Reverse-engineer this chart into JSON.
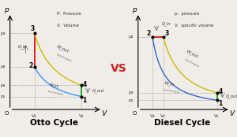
{
  "bg_color": "#f0ede8",
  "otto": {
    "title": "Otto Cycle",
    "xlabel": "V",
    "ylabel": "p",
    "legend_lines": [
      "P:  Pressure",
      "V:  Volume"
    ],
    "points": {
      "1": [
        0.82,
        0.14
      ],
      "2": [
        0.28,
        0.46
      ],
      "3": [
        0.28,
        0.82
      ],
      "4": [
        0.82,
        0.26
      ]
    },
    "colors": {
      "12": "#3399ff",
      "23": "#dd2222",
      "34": "#ccbb00",
      "41": "#22aa22"
    }
  },
  "diesel": {
    "title": "Diesel Cycle",
    "xlabel": "V",
    "ylabel": "p",
    "legend_lines": [
      "p:  pressure",
      "V:  specific volume"
    ],
    "points": {
      "1": [
        0.88,
        0.1
      ],
      "2": [
        0.16,
        0.78
      ],
      "3": [
        0.28,
        0.78
      ],
      "4": [
        0.88,
        0.18
      ]
    },
    "colors": {
      "12": "#3366cc",
      "23": "#dd2222",
      "34": "#ccbb00",
      "41": "#22aa22"
    }
  },
  "vs_color": "#cc2222",
  "dash_color": "#aaaaaa",
  "label_color": "#333333",
  "annot_color": "#777777"
}
